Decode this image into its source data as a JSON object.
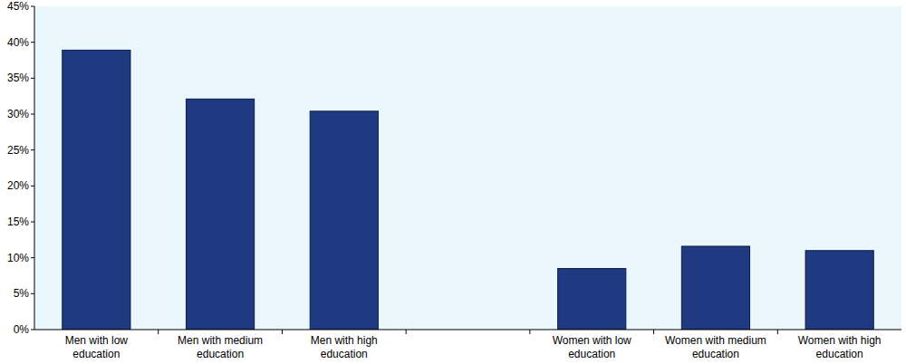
{
  "chart_data": {
    "type": "bar",
    "categories": [
      "Men with low education",
      "Men with medium education",
      "Men with high education",
      null,
      "Women with low education",
      "Women with medium education",
      "Women with high education"
    ],
    "values": [
      38.9,
      32.1,
      30.4,
      null,
      8.5,
      11.6,
      11.0
    ],
    "color": "#1f3a80",
    "ylim": [
      0,
      45
    ],
    "yticks": [
      {
        "value": 0,
        "label": "0%"
      },
      {
        "value": 5,
        "label": "5%"
      },
      {
        "value": 10,
        "label": "10%"
      },
      {
        "value": 15,
        "label": "15%"
      },
      {
        "value": 20,
        "label": "20%"
      },
      {
        "value": 25,
        "label": "25%"
      },
      {
        "value": 30,
        "label": "30%"
      },
      {
        "value": 35,
        "label": "35%"
      },
      {
        "value": 40,
        "label": "40%"
      },
      {
        "value": 45,
        "label": "45%"
      }
    ],
    "grid": false
  }
}
